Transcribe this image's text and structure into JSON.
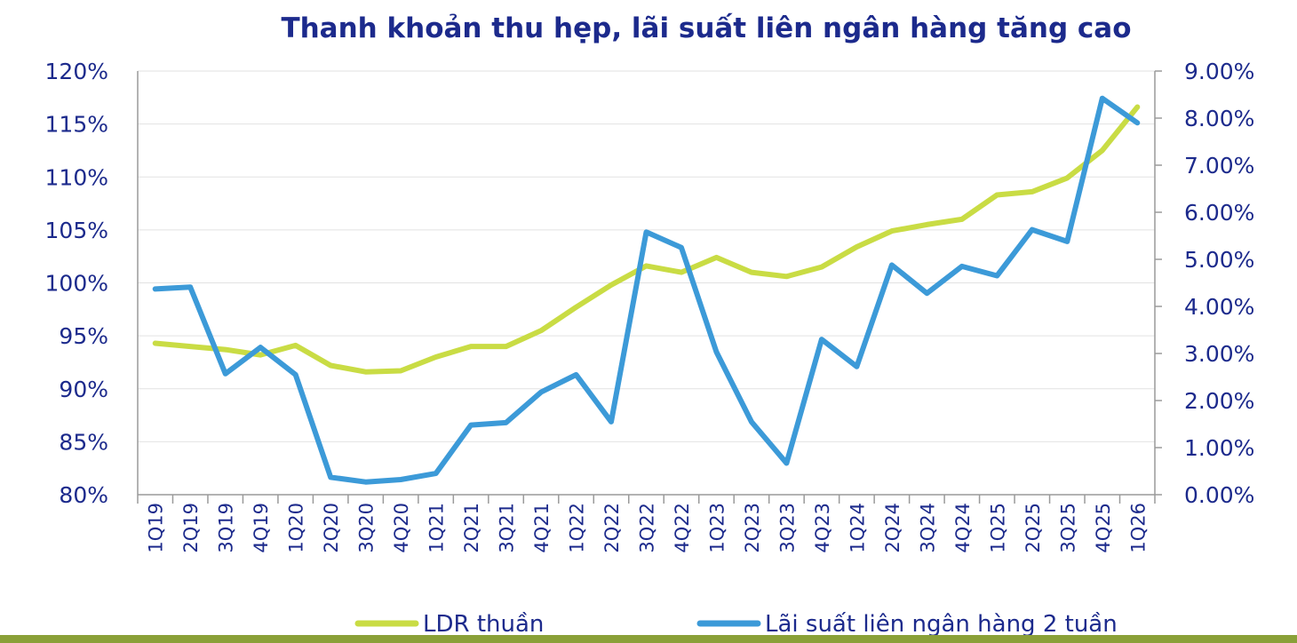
{
  "chart_data": {
    "type": "line",
    "title": "Thanh khoản thu hẹp, lãi suất liên ngân hàng tăng cao",
    "categories": [
      "1Q19",
      "2Q19",
      "3Q19",
      "4Q19",
      "1Q20",
      "2Q20",
      "3Q20",
      "4Q20",
      "1Q21",
      "2Q21",
      "3Q21",
      "4Q21",
      "1Q22",
      "2Q22",
      "3Q22",
      "4Q22",
      "1Q23",
      "2Q23",
      "3Q23",
      "4Q23",
      "1Q24",
      "2Q24",
      "3Q24",
      "4Q24",
      "1Q25",
      "2Q25",
      "3Q25",
      "4Q25",
      "1Q26"
    ],
    "series": [
      {
        "name": "LDR thuần",
        "axis": "left",
        "color": "#c9dc44",
        "values": [
          94.3,
          94.0,
          93.7,
          93.2,
          94.1,
          92.2,
          91.6,
          91.7,
          93.0,
          94.0,
          94.0,
          95.5,
          97.7,
          99.8,
          101.6,
          101.0,
          102.4,
          101.0,
          100.6,
          101.5,
          103.4,
          104.9,
          105.5,
          106.0,
          108.3,
          108.6,
          109.9,
          112.5,
          116.6
        ]
      },
      {
        "name": "Lãi suất liên ngân hàng 2 tuần",
        "axis": "right",
        "color": "#3c9ad8",
        "values": [
          4.37,
          4.41,
          2.57,
          3.13,
          2.55,
          0.37,
          0.27,
          0.32,
          0.45,
          1.48,
          1.53,
          2.18,
          2.55,
          1.55,
          5.58,
          5.25,
          3.03,
          1.55,
          0.67,
          3.3,
          2.72,
          4.88,
          4.28,
          4.85,
          4.65,
          5.63,
          5.38,
          8.42,
          7.9
        ]
      }
    ],
    "y_left": {
      "min": 80,
      "max": 120,
      "step": 5,
      "ticks": [
        "80%",
        "85%",
        "90%",
        "95%",
        "100%",
        "105%",
        "110%",
        "115%",
        "120%"
      ]
    },
    "y_right": {
      "min": 0,
      "max": 9,
      "step": 1,
      "ticks": [
        "0.00%",
        "1.00%",
        "2.00%",
        "3.00%",
        "4.00%",
        "5.00%",
        "6.00%",
        "7.00%",
        "8.00%",
        "9.00%"
      ]
    },
    "grid": true,
    "legend": "bottom"
  }
}
